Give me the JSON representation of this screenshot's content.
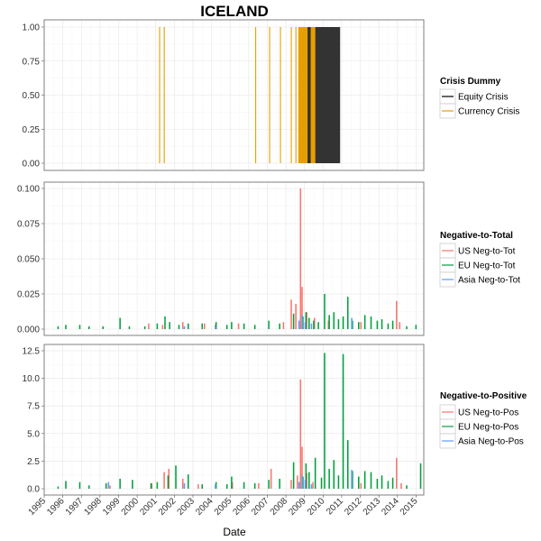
{
  "chart_data": {
    "type": "bar",
    "title": "ICELAND",
    "xlabel": "Date",
    "x_ticks": [
      "1995",
      "1996",
      "1997",
      "1998",
      "1999",
      "2000",
      "2001",
      "2002",
      "2003",
      "2004",
      "2005",
      "2006",
      "2007",
      "2008",
      "2009",
      "2010",
      "2011",
      "2012",
      "2013",
      "2014",
      "2015"
    ],
    "xlim": [
      "1995-01",
      "2015-06"
    ],
    "grid": true,
    "panels": [
      {
        "id": "crisis",
        "ylim": [
          0,
          1
        ],
        "y_ticks": [
          "0.00",
          "0.25",
          "0.50",
          "0.75",
          "1.00"
        ],
        "legend_title": "Crisis Dummy",
        "legend_position": "right",
        "series": [
          {
            "name": "Equity Crisis",
            "color": "#000000",
            "periods": [
              [
                "2008-10",
                "2010-11"
              ]
            ]
          },
          {
            "name": "Currency Crisis",
            "color": "#E69F00",
            "lines": [
              "2001-03",
              "2001-06",
              "2006-05",
              "2007-02",
              "2007-09",
              "2008-04",
              "2008-07"
            ],
            "periods": [
              [
                "2008-09",
                "2009-02"
              ],
              [
                "2009-05",
                "2009-07"
              ]
            ]
          }
        ]
      },
      {
        "id": "neg-to-total",
        "ylim": [
          0,
          0.1
        ],
        "y_ticks": [
          "0.000",
          "0.025",
          "0.050",
          "0.075",
          "0.100"
        ],
        "legend_title": "Negative-to-Total",
        "legend_position": "right",
        "series": [
          {
            "name": "US Neg-to-Tot",
            "color": "#F8766D",
            "points": [
              [
                "2000-08",
                0.004
              ],
              [
                "2001-05",
                0.003
              ],
              [
                "2002-06",
                0.005
              ],
              [
                "2003-08",
                0.004
              ],
              [
                "2004-03",
                0.003
              ],
              [
                "2005-06",
                0.004
              ],
              [
                "2007-11",
                0.005
              ],
              [
                "2008-04",
                0.021
              ],
              [
                "2008-07",
                0.018
              ],
              [
                "2008-10",
                0.1
              ],
              [
                "2008-11",
                0.03
              ],
              [
                "2009-02",
                0.012
              ],
              [
                "2009-07",
                0.008
              ],
              [
                "2010-04",
                0.006
              ],
              [
                "2012-01",
                0.005
              ],
              [
                "2013-12",
                0.02
              ],
              [
                "2014-02",
                0.005
              ]
            ]
          },
          {
            "name": "EU Neg-to-Tot",
            "color": "#00A03C",
            "points": [
              [
                "1995-09",
                0.002
              ],
              [
                "1996-02",
                0.003
              ],
              [
                "1996-11",
                0.003
              ],
              [
                "1997-05",
                0.002
              ],
              [
                "1998-02",
                0.002
              ],
              [
                "1999-01",
                0.008
              ],
              [
                "1999-07",
                0.002
              ],
              [
                "2000-05",
                0.002
              ],
              [
                "2001-01",
                0.004
              ],
              [
                "2001-06",
                0.009
              ],
              [
                "2001-09",
                0.005
              ],
              [
                "2002-03",
                0.003
              ],
              [
                "2002-09",
                0.004
              ],
              [
                "2003-06",
                0.004
              ],
              [
                "2004-03",
                0.005
              ],
              [
                "2004-10",
                0.003
              ],
              [
                "2005-01",
                0.005
              ],
              [
                "2005-09",
                0.004
              ],
              [
                "2006-04",
                0.003
              ],
              [
                "2007-01",
                0.006
              ],
              [
                "2007-08",
                0.004
              ],
              [
                "2008-05",
                0.011
              ],
              [
                "2008-11",
                0.009
              ],
              [
                "2009-01",
                0.012
              ],
              [
                "2009-03",
                0.008
              ],
              [
                "2009-06",
                0.006
              ],
              [
                "2009-09",
                0.005
              ],
              [
                "2010-01",
                0.025
              ],
              [
                "2010-04",
                0.01
              ],
              [
                "2010-07",
                0.012
              ],
              [
                "2010-10",
                0.007
              ],
              [
                "2011-01",
                0.009
              ],
              [
                "2011-04",
                0.023
              ],
              [
                "2011-07",
                0.006
              ],
              [
                "2011-11",
                0.005
              ],
              [
                "2012-03",
                0.01
              ],
              [
                "2012-07",
                0.009
              ],
              [
                "2012-11",
                0.006
              ],
              [
                "2013-02",
                0.007
              ],
              [
                "2013-06",
                0.004
              ],
              [
                "2013-09",
                0.006
              ],
              [
                "2014-06",
                0.002
              ],
              [
                "2014-12",
                0.003
              ]
            ]
          },
          {
            "name": "Asia Neg-to-Tot",
            "color": "#619CFF",
            "points": [
              [
                "2002-06",
                0.002
              ],
              [
                "2004-02",
                0.002
              ],
              [
                "2008-08",
                0.006
              ],
              [
                "2008-10",
                0.01
              ],
              [
                "2008-12",
                0.005
              ],
              [
                "2009-04",
                0.004
              ],
              [
                "2011-06",
                0.008
              ]
            ]
          }
        ]
      },
      {
        "id": "neg-to-positive",
        "ylim": [
          0,
          12.5
        ],
        "y_ticks": [
          "0.0",
          "2.5",
          "5.0",
          "7.5",
          "10.0",
          "12.5"
        ],
        "legend_title": "Negative-to-Positive",
        "legend_position": "right",
        "series": [
          {
            "name": "US Neg-to-Pos",
            "color": "#F8766D",
            "points": [
              [
                "1998-07",
                0.3
              ],
              [
                "2000-10",
                0.5
              ],
              [
                "2001-06",
                1.5
              ],
              [
                "2001-09",
                1.8
              ],
              [
                "2002-06",
                0.9
              ],
              [
                "2003-04",
                0.4
              ],
              [
                "2005-02",
                0.6
              ],
              [
                "2006-07",
                0.5
              ],
              [
                "2007-03",
                1.8
              ],
              [
                "2008-04",
                0.8
              ],
              [
                "2008-08",
                1.2
              ],
              [
                "2008-10",
                9.9
              ],
              [
                "2008-11",
                3.8
              ],
              [
                "2009-02",
                1.4
              ],
              [
                "2009-06",
                0.6
              ],
              [
                "2012-01",
                0.5
              ],
              [
                "2013-12",
                2.8
              ],
              [
                "2014-03",
                0.5
              ]
            ]
          },
          {
            "name": "EU Neg-to-Pos",
            "color": "#00A03C",
            "points": [
              [
                "1995-09",
                0.2
              ],
              [
                "1996-02",
                0.7
              ],
              [
                "1996-11",
                0.6
              ],
              [
                "1997-05",
                0.3
              ],
              [
                "1998-04",
                0.5
              ],
              [
                "1999-01",
                0.9
              ],
              [
                "1999-09",
                0.8
              ],
              [
                "2000-09",
                0.5
              ],
              [
                "2001-01",
                0.6
              ],
              [
                "2001-08",
                1.2
              ],
              [
                "2002-01",
                2.1
              ],
              [
                "2002-09",
                1.3
              ],
              [
                "2003-06",
                0.4
              ],
              [
                "2004-03",
                0.6
              ],
              [
                "2004-10",
                0.4
              ],
              [
                "2005-01",
                1.1
              ],
              [
                "2005-09",
                0.6
              ],
              [
                "2006-04",
                0.5
              ],
              [
                "2007-01",
                0.8
              ],
              [
                "2007-08",
                0.9
              ],
              [
                "2008-05",
                2.4
              ],
              [
                "2008-11",
                1.1
              ],
              [
                "2009-01",
                2.3
              ],
              [
                "2009-03",
                1.5
              ],
              [
                "2009-07",
                2.8
              ],
              [
                "2009-11",
                1.0
              ],
              [
                "2010-01",
                12.3
              ],
              [
                "2010-04",
                1.8
              ],
              [
                "2010-07",
                2.6
              ],
              [
                "2010-10",
                1.2
              ],
              [
                "2011-01",
                12.2
              ],
              [
                "2011-04",
                4.4
              ],
              [
                "2011-07",
                1.6
              ],
              [
                "2011-11",
                1.1
              ],
              [
                "2012-03",
                1.6
              ],
              [
                "2012-07",
                1.5
              ],
              [
                "2012-11",
                0.9
              ],
              [
                "2013-02",
                1.2
              ],
              [
                "2013-06",
                0.7
              ],
              [
                "2013-09",
                1.0
              ],
              [
                "2014-06",
                0.3
              ],
              [
                "2015-03",
                2.3
              ]
            ]
          },
          {
            "name": "Asia Neg-to-Pos",
            "color": "#619CFF",
            "points": [
              [
                "1998-05",
                0.6
              ],
              [
                "2002-06",
                0.5
              ],
              [
                "2004-02",
                0.4
              ],
              [
                "2008-08",
                0.6
              ],
              [
                "2008-10",
                1.2
              ],
              [
                "2008-12",
                0.8
              ],
              [
                "2009-04",
                0.4
              ],
              [
                "2011-06",
                1.7
              ]
            ]
          }
        ]
      }
    ]
  }
}
